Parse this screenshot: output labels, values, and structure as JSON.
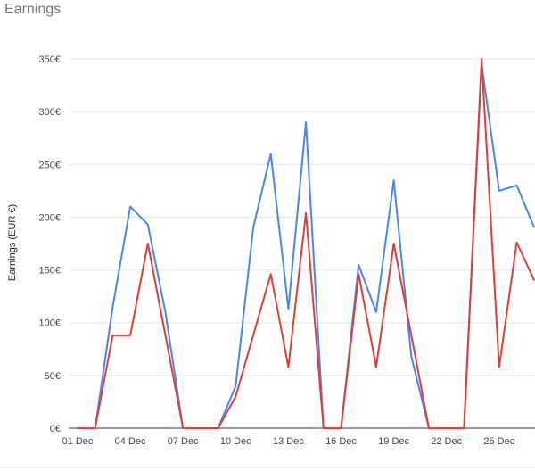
{
  "card": {
    "title": "Earnings"
  },
  "chart_data": {
    "type": "line",
    "title": "",
    "xlabel": "",
    "ylabel": "Earnings (EUR €)",
    "ylim": [
      0,
      350
    ],
    "yticks": [
      0,
      50,
      100,
      150,
      200,
      250,
      300,
      350
    ],
    "ytick_labels": [
      "0€",
      "50€",
      "100€",
      "150€",
      "200€",
      "250€",
      "300€",
      "350€"
    ],
    "x": [
      "01 Dec",
      "02 Dec",
      "03 Dec",
      "04 Dec",
      "05 Dec",
      "06 Dec",
      "07 Dec",
      "08 Dec",
      "09 Dec",
      "10 Dec",
      "11 Dec",
      "12 Dec",
      "13 Dec",
      "14 Dec",
      "15 Dec",
      "16 Dec",
      "17 Dec",
      "18 Dec",
      "19 Dec",
      "20 Dec",
      "21 Dec",
      "22 Dec",
      "23 Dec",
      "24 Dec",
      "25 Dec",
      "26 Dec",
      "27 Dec"
    ],
    "xtick_labels": [
      "01 Dec",
      "04 Dec",
      "07 Dec",
      "10 Dec",
      "13 Dec",
      "16 Dec",
      "19 Dec",
      "22 Dec",
      "25 Dec"
    ],
    "grid": true,
    "legend": "none",
    "series": [
      {
        "color": "#4a86e8",
        "values": [
          0,
          0,
          115,
          210,
          193,
          110,
          0,
          0,
          0,
          40,
          190,
          260,
          113,
          290,
          0,
          0,
          155,
          110,
          235,
          68,
          0,
          0,
          0,
          345,
          225,
          230,
          190
        ]
      },
      {
        "color": "#d93f3b",
        "values": [
          0,
          0,
          88,
          88,
          175,
          88,
          0,
          0,
          0,
          30,
          88,
          146,
          58,
          204,
          0,
          0,
          146,
          58,
          175,
          88,
          0,
          0,
          0,
          350,
          58,
          176,
          140
        ]
      }
    ]
  }
}
